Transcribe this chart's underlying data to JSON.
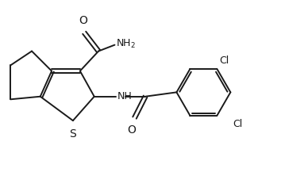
{
  "bg_color": "#ffffff",
  "line_color": "#1a1a1a",
  "line_width": 1.4,
  "font_size": 9,
  "fig_width": 3.59,
  "fig_height": 2.22,
  "dpi": 100,
  "xlim": [
    0,
    10
  ],
  "ylim": [
    0,
    6.0
  ]
}
